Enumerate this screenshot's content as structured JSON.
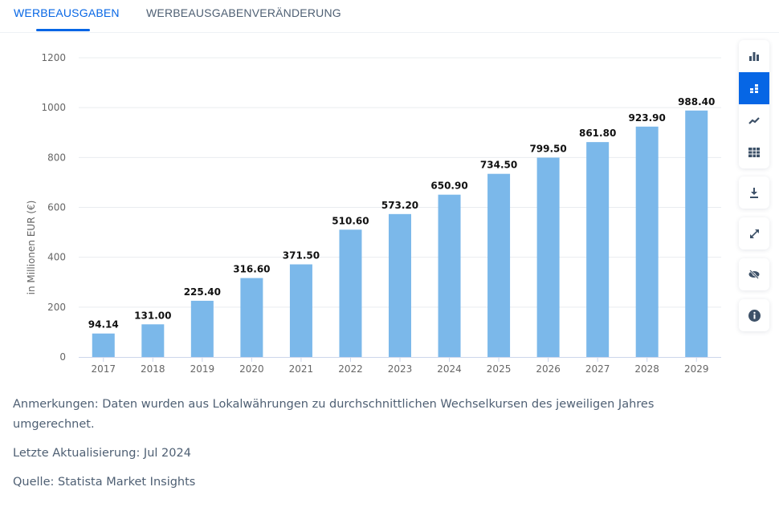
{
  "tabs": [
    {
      "label": "WERBEAUSGABEN",
      "active": true
    },
    {
      "label": "WERBEAUSGABENVERÄNDERUNG",
      "active": false
    }
  ],
  "sidebar": {
    "chart_type_buttons": [
      {
        "icon": "bar-chart-icon",
        "active": false
      },
      {
        "icon": "stacked-bars-icon",
        "active": true
      },
      {
        "icon": "line-chart-icon",
        "active": false
      },
      {
        "icon": "table-icon",
        "active": false
      }
    ],
    "action_buttons": [
      {
        "icon": "download-icon"
      },
      {
        "icon": "fullscreen-icon"
      },
      {
        "icon": "hide-icon"
      },
      {
        "icon": "info-icon"
      }
    ]
  },
  "colors": {
    "accent": "#0666e5",
    "bar": "#7bb8ea",
    "icon": "#3d5168",
    "text_muted": "#4e5f73"
  },
  "notes": {
    "remarks": "Anmerkungen: Daten wurden aus Lokalwährungen zu durchschnittlichen Wechselkursen des jeweiligen Jahres umgerechnet.",
    "last_update": "Letzte Aktualisierung: Jul 2024",
    "source": "Quelle: Statista Market Insights"
  },
  "chart_data": {
    "type": "bar",
    "title": "",
    "xlabel": "",
    "ylabel": "in Millionen EUR (€)",
    "categories": [
      "2017",
      "2018",
      "2019",
      "2020",
      "2021",
      "2022",
      "2023",
      "2024",
      "2025",
      "2026",
      "2027",
      "2028",
      "2029"
    ],
    "values": [
      94.14,
      131.0,
      225.4,
      316.6,
      371.5,
      510.6,
      573.2,
      650.9,
      734.5,
      799.5,
      861.8,
      923.9,
      988.4
    ],
    "value_labels": [
      "94.14",
      "131.00",
      "225.40",
      "316.60",
      "371.50",
      "510.60",
      "573.20",
      "650.90",
      "734.50",
      "799.50",
      "861.80",
      "923.90",
      "988.40"
    ],
    "ylim": [
      0,
      1200
    ],
    "yticks": [
      0,
      200,
      400,
      600,
      800,
      1000,
      1200
    ],
    "grid": true,
    "legend": "none"
  }
}
